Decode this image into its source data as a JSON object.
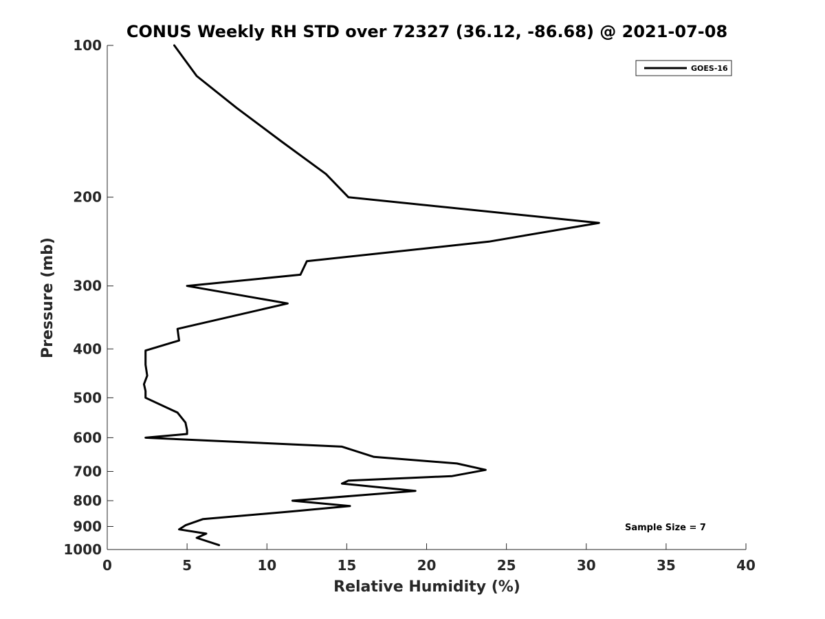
{
  "chart_data": {
    "type": "line",
    "title": "CONUS Weekly RH STD over 72327 (36.12, -86.68) @ 2021-07-08",
    "xlabel": "Relative Humidity (%)",
    "ylabel": "Pressure (mb)",
    "xlim": [
      0,
      40
    ],
    "ylim": [
      100,
      1000
    ],
    "yscale": "log",
    "y_reversed": true,
    "xticks": [
      0,
      5,
      10,
      15,
      20,
      25,
      30,
      35,
      40
    ],
    "xtick_labels": [
      "0",
      "5",
      "10",
      "15",
      "20",
      "25",
      "30",
      "35",
      "40"
    ],
    "yticks": [
      100,
      200,
      300,
      400,
      500,
      600,
      700,
      800,
      900,
      1000
    ],
    "ytick_labels": [
      "100",
      "200",
      "300",
      "400",
      "500",
      "600",
      "700",
      "800",
      "900",
      "1000"
    ],
    "grid": false,
    "legend_position": "top-right",
    "series": [
      {
        "name": "GOES-16",
        "color": "#000000",
        "x": [
          4.2,
          5.6,
          8.1,
          10.9,
          13.7,
          15.1,
          30.8,
          23.9,
          12.5,
          12.1,
          5.0,
          11.3,
          4.4,
          4.5,
          2.4,
          2.4,
          2.5,
          2.3,
          2.4,
          2.4,
          4.4,
          4.9,
          5.0,
          5.0,
          2.4,
          14.7,
          16.7,
          21.9,
          23.7,
          21.6,
          15.1,
          14.7,
          19.3,
          11.6,
          15.2,
          11.6,
          6.0,
          4.9,
          4.5,
          6.2,
          5.6,
          7.0
        ],
        "y": [
          100,
          115,
          133,
          155,
          180,
          200,
          225,
          245,
          268,
          285,
          300,
          325,
          365,
          385,
          403,
          430,
          452,
          470,
          485,
          500,
          535,
          560,
          580,
          590,
          600,
          625,
          655,
          675,
          695,
          715,
          730,
          740,
          765,
          800,
          820,
          840,
          870,
          895,
          912,
          930,
          948,
          980
        ]
      }
    ],
    "annotations": [
      {
        "text": "Sample Size = 7",
        "position": "bottom-right"
      }
    ]
  }
}
